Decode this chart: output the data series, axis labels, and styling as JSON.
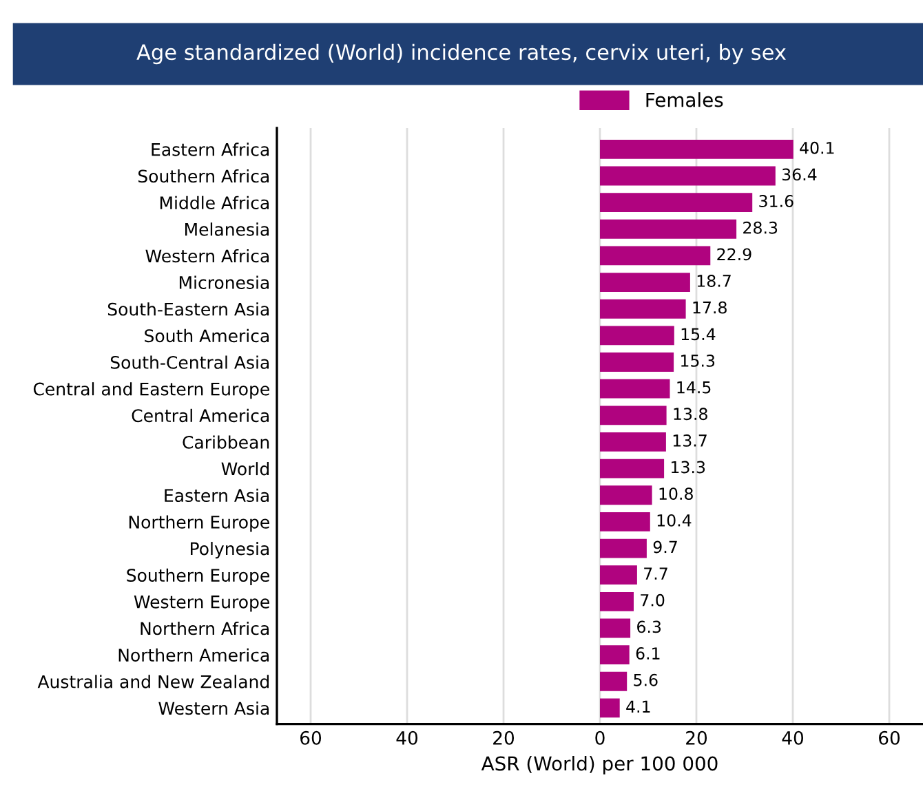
{
  "chart_data": {
    "type": "bar",
    "orientation": "horizontal",
    "title": "Age standardized (World) incidence rates, cervix uteri, by sex",
    "xlabel": "ASR (World) per 100 000",
    "categories": [
      "Eastern Africa",
      "Southern Africa",
      "Middle Africa",
      "Melanesia",
      "Western Africa",
      "Micronesia",
      "South-Eastern Asia",
      "South America",
      "South-Central Asia",
      "Central and Eastern Europe",
      "Central America",
      "Caribbean",
      "World",
      "Eastern Asia",
      "Northern Europe",
      "Polynesia",
      "Southern Europe",
      "Western Europe",
      "Northern Africa",
      "Northern America",
      "Australia and New Zealand",
      "Western Asia"
    ],
    "series": [
      {
        "name": "Females",
        "color": "#b0037f",
        "values": [
          40.1,
          36.4,
          31.6,
          28.3,
          22.9,
          18.7,
          17.8,
          15.4,
          15.3,
          14.5,
          13.8,
          13.7,
          13.3,
          10.8,
          10.4,
          9.7,
          7.7,
          7.0,
          6.3,
          6.1,
          5.6,
          4.1
        ],
        "value_labels": [
          "40.1",
          "36.4",
          "31.6",
          "28.3",
          "22.9",
          "18.7",
          "17.8",
          "15.4",
          "15.3",
          "14.5",
          "13.8",
          "13.7",
          "13.3",
          "10.8",
          "10.4",
          "9.7",
          "7.7",
          "7.0",
          "6.3",
          "6.1",
          "5.6",
          "4.1"
        ]
      }
    ],
    "xlim": [
      -67,
      67
    ],
    "xticks": [
      {
        "value": -60,
        "label": "60"
      },
      {
        "value": -40,
        "label": "40"
      },
      {
        "value": -20,
        "label": "20"
      },
      0,
      20,
      40,
      60
    ],
    "grid": "x",
    "legend": "top"
  }
}
